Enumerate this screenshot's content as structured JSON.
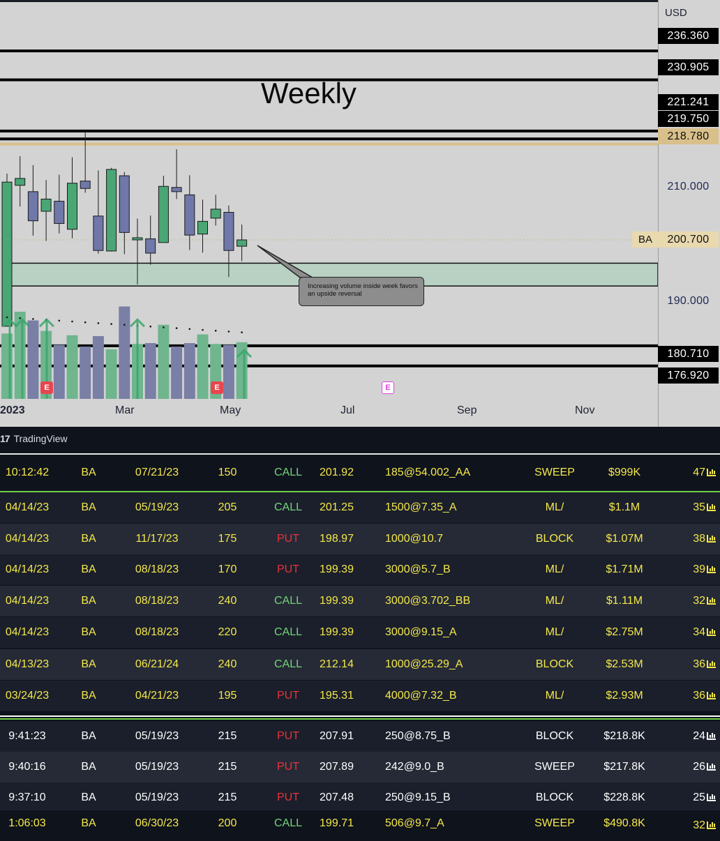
{
  "chart": {
    "title": "Weekly",
    "currency": "USD",
    "ticker_badge": "BA",
    "price_tags": {
      "p236": "236.360",
      "p230": "230.905",
      "p221": "221.241",
      "p219": "219.750",
      "p218": "218.780",
      "p210": "210.000",
      "p200": "200.700",
      "p190": "190.000",
      "p180": "180.710",
      "p176": "176.920"
    },
    "annotation": "Increasing volume inside week favors an upside reversal",
    "months": [
      "2023",
      "Mar",
      "May",
      "Jul",
      "Sep",
      "Nov"
    ],
    "earnings_badge": "E",
    "colors": {
      "up": "#4aa675",
      "down": "#6f78a8",
      "zone": "#b8d1c3",
      "gold_line": "#d9c08a"
    },
    "brand": "TradingView"
  },
  "chart_data": {
    "type": "candlestick",
    "title": "Weekly",
    "ylabel": "USD",
    "ylim": [
      172,
      240
    ],
    "ohlc": [
      {
        "o": 184.4,
        "h": 213.2,
        "l": 184.4,
        "c": 211.6
      },
      {
        "o": 211.0,
        "h": 216.5,
        "l": 207.0,
        "c": 212.3
      },
      {
        "o": 209.8,
        "h": 214.8,
        "l": 201.5,
        "c": 204.3
      },
      {
        "o": 206.1,
        "h": 212.0,
        "l": 200.5,
        "c": 208.4
      },
      {
        "o": 208.0,
        "h": 213.0,
        "l": 201.9,
        "c": 203.8
      },
      {
        "o": 202.7,
        "h": 216.3,
        "l": 201.0,
        "c": 211.4
      },
      {
        "o": 211.8,
        "h": 221.2,
        "l": 209.6,
        "c": 210.4
      },
      {
        "o": 205.2,
        "h": 213.8,
        "l": 198.1,
        "c": 198.7
      },
      {
        "o": 198.6,
        "h": 214.3,
        "l": 198.5,
        "c": 214.0
      },
      {
        "o": 212.8,
        "h": 213.5,
        "l": 198.0,
        "c": 202.1
      },
      {
        "o": 200.7,
        "h": 204.7,
        "l": 192.3,
        "c": 201.1
      },
      {
        "o": 200.9,
        "h": 205.3,
        "l": 196.0,
        "c": 198.2
      },
      {
        "o": 200.2,
        "h": 212.8,
        "l": 200.2,
        "c": 210.8
      },
      {
        "o": 210.6,
        "h": 217.8,
        "l": 208.4,
        "c": 209.8
      },
      {
        "o": 209.2,
        "h": 212.9,
        "l": 198.8,
        "c": 201.6
      },
      {
        "o": 201.8,
        "h": 208.3,
        "l": 198.3,
        "c": 204.2
      },
      {
        "o": 204.8,
        "h": 209.2,
        "l": 203.4,
        "c": 206.5
      },
      {
        "o": 205.9,
        "h": 207.2,
        "l": 193.7,
        "c": 198.7
      },
      {
        "o": 199.5,
        "h": 203.6,
        "l": 196.7,
        "c": 200.7
      }
    ],
    "volume_relative": [
      0.75,
      1.0,
      0.9,
      0.78,
      0.62,
      0.73,
      0.6,
      0.72,
      0.57,
      1.06,
      0.63,
      0.64,
      0.85,
      0.6,
      0.64,
      0.74,
      0.63,
      0.62,
      0.65
    ],
    "horizontal_levels": [
      236.36,
      230.905,
      221.241,
      219.75,
      218.78,
      180.71,
      176.92
    ],
    "zone": [
      192.0,
      196.3
    ],
    "last_price": 200.7
  },
  "rows": [
    {
      "time": "10:12:42",
      "sym": "BA",
      "exp": "07/21/23",
      "strike": "150",
      "type": "CALL",
      "spot": "201.92",
      "detail": "185@54.002_AA",
      "kind": "SWEEP",
      "prem": "$999K",
      "score": "47"
    },
    {
      "time": "04/14/23",
      "sym": "BA",
      "exp": "05/19/23",
      "strike": "205",
      "type": "CALL",
      "spot": "201.25",
      "detail": "1500@7.35_A",
      "kind": "ML/",
      "prem": "$1.1M",
      "score": "35"
    },
    {
      "time": "04/14/23",
      "sym": "BA",
      "exp": "11/17/23",
      "strike": "175",
      "type": "PUT",
      "spot": "198.97",
      "detail": "1000@10.7",
      "kind": "BLOCK",
      "prem": "$1.07M",
      "score": "38"
    },
    {
      "time": "04/14/23",
      "sym": "BA",
      "exp": "08/18/23",
      "strike": "170",
      "type": "PUT",
      "spot": "199.39",
      "detail": "3000@5.7_B",
      "kind": "ML/",
      "prem": "$1.71M",
      "score": "39"
    },
    {
      "time": "04/14/23",
      "sym": "BA",
      "exp": "08/18/23",
      "strike": "240",
      "type": "CALL",
      "spot": "199.39",
      "detail": "3000@3.702_BB",
      "kind": "ML/",
      "prem": "$1.11M",
      "score": "32"
    },
    {
      "time": "04/14/23",
      "sym": "BA",
      "exp": "08/18/23",
      "strike": "220",
      "type": "CALL",
      "spot": "199.39",
      "detail": "3000@9.15_A",
      "kind": "ML/",
      "prem": "$2.75M",
      "score": "34"
    },
    {
      "time": "04/13/23",
      "sym": "BA",
      "exp": "06/21/24",
      "strike": "240",
      "type": "CALL",
      "spot": "212.14",
      "detail": "1000@25.29_A",
      "kind": "BLOCK",
      "prem": "$2.53M",
      "score": "36"
    },
    {
      "time": "03/24/23",
      "sym": "BA",
      "exp": "04/21/23",
      "strike": "195",
      "type": "PUT",
      "spot": "195.31",
      "detail": "4000@7.32_B",
      "kind": "ML/",
      "prem": "$2.93M",
      "score": "36"
    },
    {
      "time": "9:41:23",
      "sym": "BA",
      "exp": "05/19/23",
      "strike": "215",
      "type": "PUT",
      "spot": "207.91",
      "detail": "250@8.75_B",
      "kind": "BLOCK",
      "prem": "$218.8K",
      "score": "24"
    },
    {
      "time": "9:40:16",
      "sym": "BA",
      "exp": "05/19/23",
      "strike": "215",
      "type": "PUT",
      "spot": "207.89",
      "detail": "242@9.0_B",
      "kind": "SWEEP",
      "prem": "$217.8K",
      "score": "26"
    },
    {
      "time": "9:37:10",
      "sym": "BA",
      "exp": "05/19/23",
      "strike": "215",
      "type": "PUT",
      "spot": "207.48",
      "detail": "250@9.15_B",
      "kind": "BLOCK",
      "prem": "$228.8K",
      "score": "25"
    },
    {
      "time": "1:06:03",
      "sym": "BA",
      "exp": "06/30/23",
      "strike": "200",
      "type": "CALL",
      "spot": "199.71",
      "detail": "506@9.7_A",
      "kind": "SWEEP",
      "prem": "$490.8K",
      "score": "32"
    }
  ]
}
